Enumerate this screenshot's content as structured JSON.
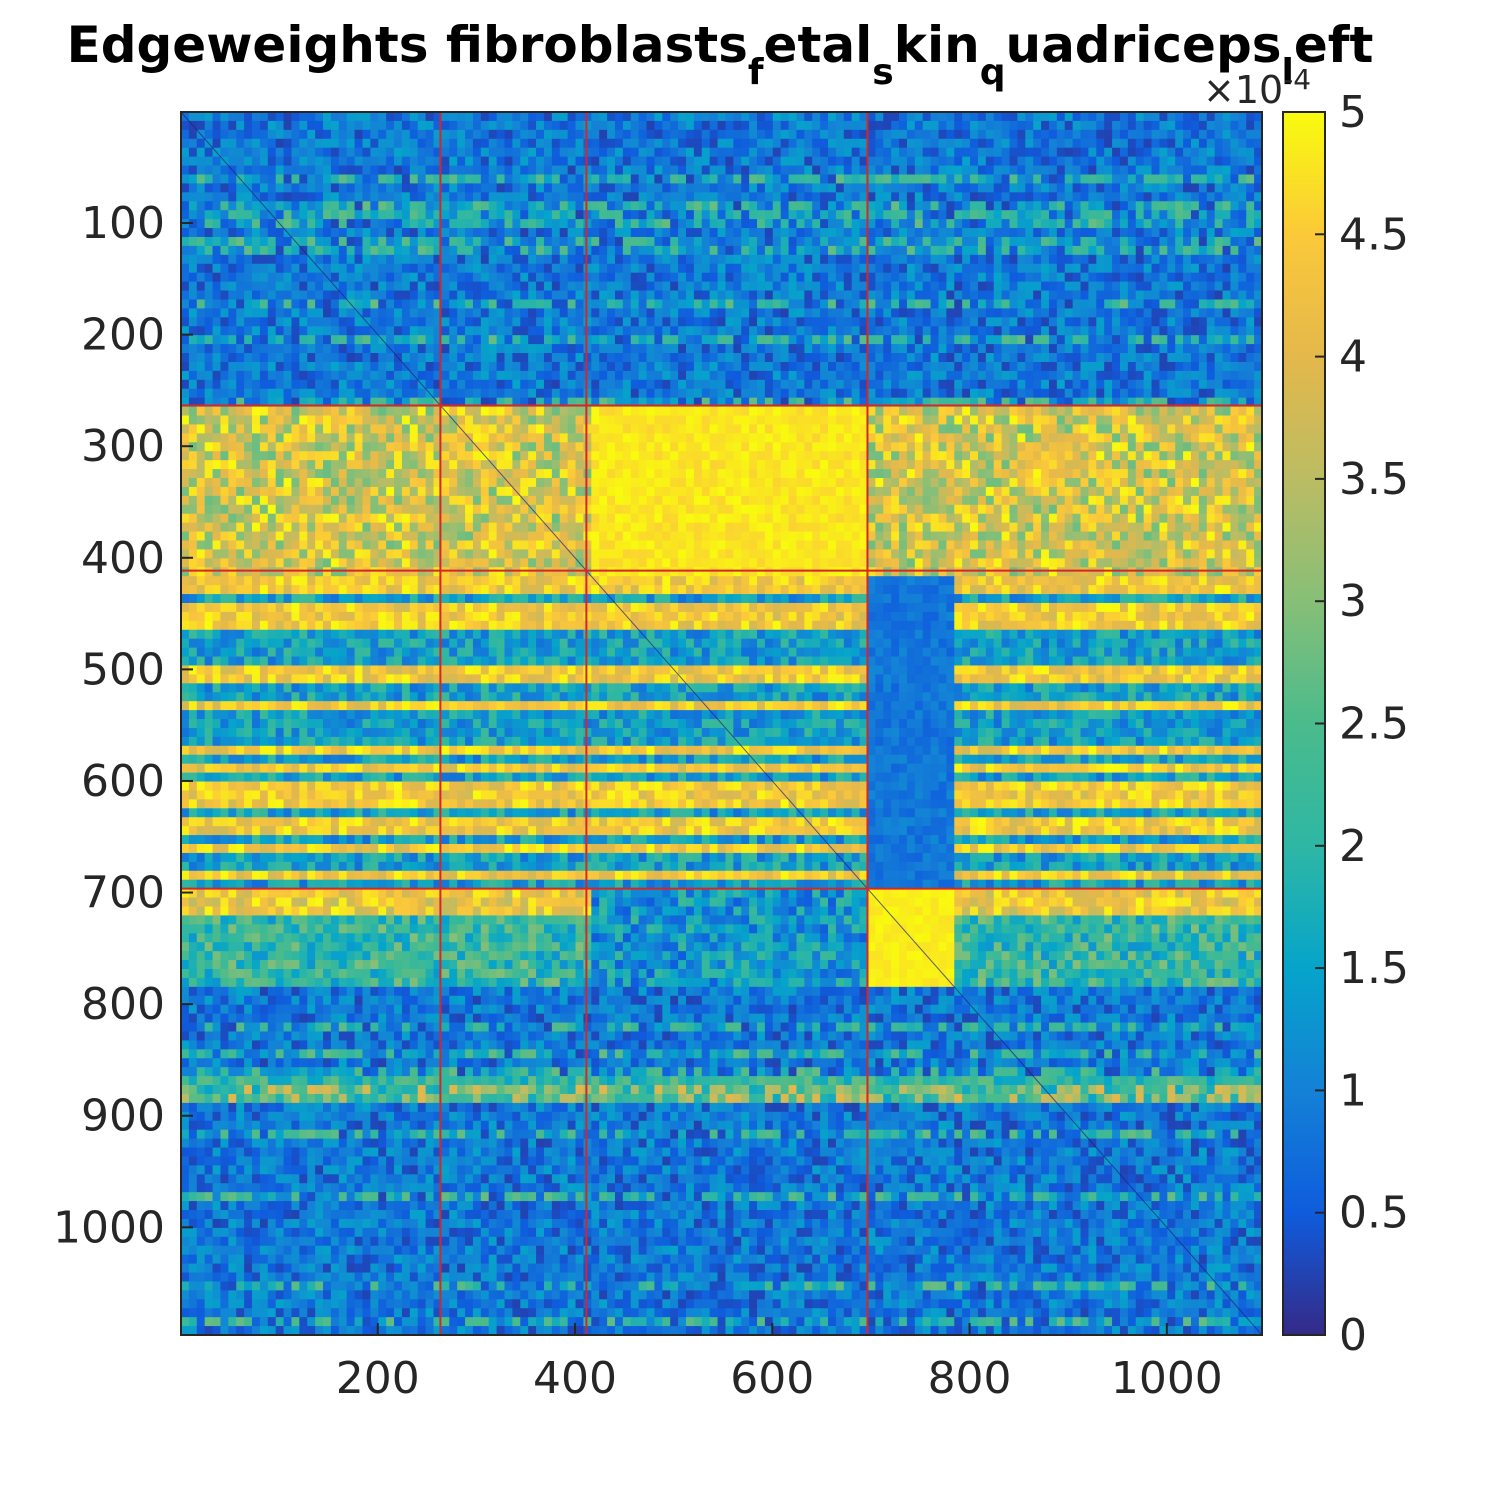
{
  "chart_data": {
    "type": "heatmap",
    "title": "Edgeweights fibroblasts_fetal_skin_quadriceps_left",
    "title_parts": [
      {
        "text": "Edgeweights fibroblasts",
        "sub": false
      },
      {
        "text": "f",
        "sub": true
      },
      {
        "text": "etal",
        "sub": false
      },
      {
        "text": "s",
        "sub": true
      },
      {
        "text": "kin",
        "sub": false
      },
      {
        "text": "q",
        "sub": true
      },
      {
        "text": "uadriceps",
        "sub": false
      },
      {
        "text": "l",
        "sub": true
      },
      {
        "text": "eft",
        "sub": false
      }
    ],
    "xlabel": "",
    "ylabel": "",
    "matrix_size": [
      1096,
      1096
    ],
    "xlim": [
      1,
      1096
    ],
    "ylim": [
      1,
      1096
    ],
    "y_reversed": true,
    "x_ticks": [
      200,
      400,
      600,
      800,
      1000
    ],
    "y_ticks": [
      100,
      200,
      300,
      400,
      500,
      600,
      700,
      800,
      900,
      1000
    ],
    "colormap": "parula",
    "clim": [
      0,
      0.0005
    ],
    "colorbar": {
      "ticks": [
        0,
        0.5,
        1,
        1.5,
        2,
        2.5,
        3,
        3.5,
        4,
        4.5,
        5
      ],
      "tick_labels": [
        "0",
        "0.5",
        "1",
        "1.5",
        "2",
        "2.5",
        "3",
        "3.5",
        "4",
        "4.5",
        "5"
      ],
      "multiplier_base": "×10",
      "multiplier_exp": "-4",
      "location": "right"
    },
    "cluster_boundaries": [
      263,
      411,
      696
    ],
    "boundary_color": "#d62728",
    "blocks": [
      {
        "rows": [
          1,
          263
        ],
        "cols": [
          1,
          263
        ],
        "level": "low"
      },
      {
        "rows": [
          264,
          411
        ],
        "cols": [
          264,
          411
        ],
        "level": "high"
      },
      {
        "rows": [
          264,
          411
        ],
        "cols": [
          412,
          696
        ],
        "level": "high"
      },
      {
        "rows": [
          412,
          696
        ],
        "cols": [
          697,
          1096
        ],
        "level": "mixed"
      },
      {
        "rows": [
          697,
          780
        ],
        "cols": [
          697,
          780
        ],
        "level": "high"
      },
      {
        "rows": [
          781,
          1096
        ],
        "cols": [
          1,
          1096
        ],
        "level": "low"
      }
    ],
    "grid": false
  }
}
